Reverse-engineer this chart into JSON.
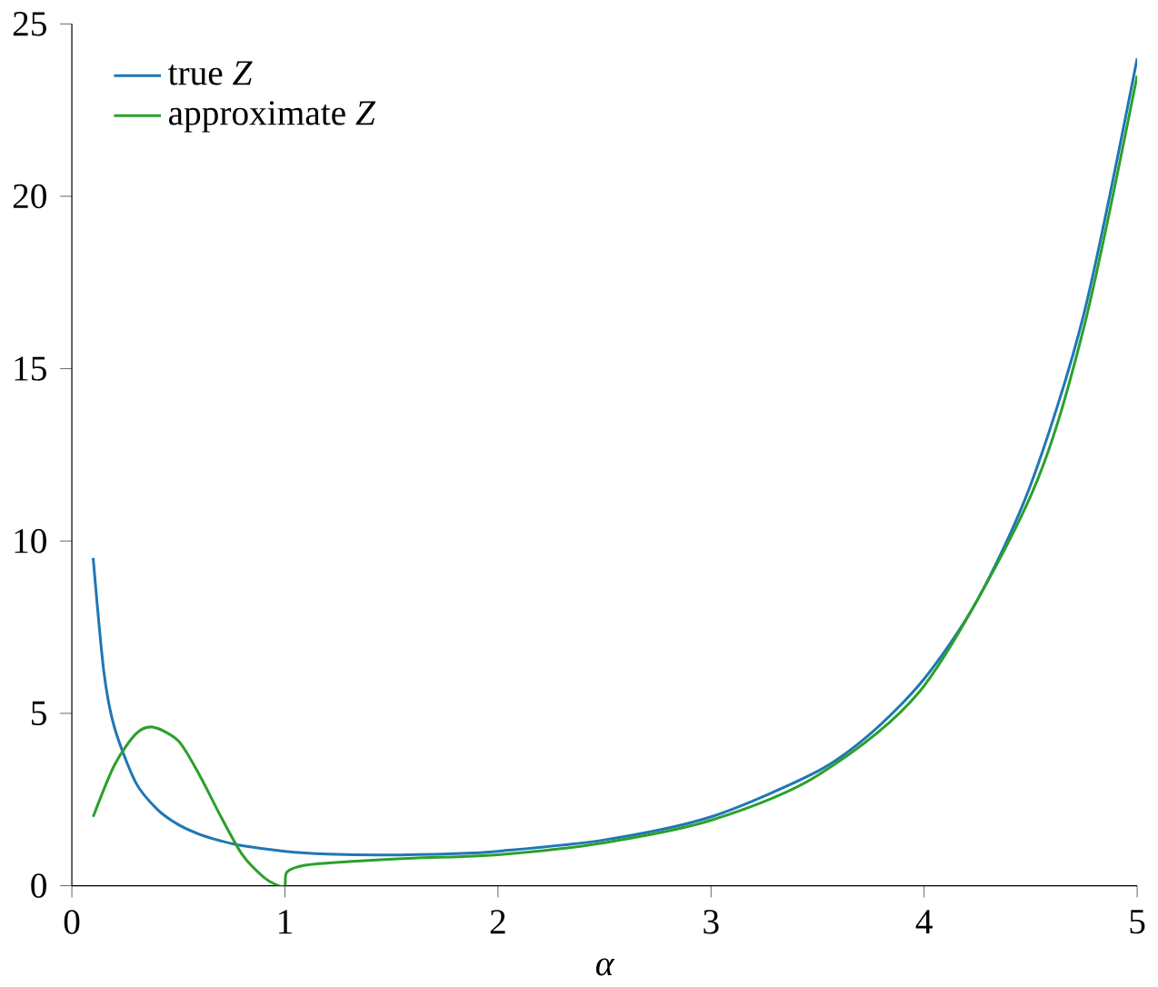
{
  "chart_data": {
    "type": "line",
    "xlabel": "α",
    "xlim": [
      0,
      5
    ],
    "ylim": [
      0,
      25
    ],
    "xticks": [
      0,
      1,
      2,
      3,
      4,
      5
    ],
    "yticks": [
      0,
      5,
      10,
      15,
      20,
      25
    ],
    "legend": "top left",
    "grid": false,
    "series": [
      {
        "name": "true *Z*",
        "color": "#1f77b4",
        "x": [
          0.1,
          0.15,
          0.2,
          0.3,
          0.4,
          0.5,
          0.6,
          0.7,
          0.8,
          1.0,
          1.2,
          1.46,
          1.8,
          2,
          2.5,
          3,
          3.5,
          3.75,
          4,
          4.25,
          4.5,
          4.75,
          5
        ],
        "values": [
          9.51,
          6.22,
          4.59,
          2.99,
          2.22,
          1.77,
          1.49,
          1.3,
          1.16,
          1.0,
          0.92,
          0.89,
          0.93,
          1.0,
          1.33,
          2.0,
          3.32,
          4.42,
          6.0,
          8.29,
          11.63,
          16.59,
          24.0
        ]
      },
      {
        "name": "approximate *Z*",
        "color": "#2ca02c",
        "x": [
          0.1,
          0.2,
          0.3,
          0.38,
          0.5,
          0.6,
          0.7,
          0.8,
          0.9,
          0.97,
          1.0,
          1.01,
          1.1,
          1.3,
          1.6,
          2,
          2.5,
          3,
          3.5,
          4,
          4.5,
          4.75,
          5
        ],
        "values": [
          2.0,
          3.5,
          4.4,
          4.6,
          4.2,
          3.2,
          2.0,
          0.9,
          0.25,
          0.0,
          0.0,
          0.4,
          0.6,
          0.7,
          0.8,
          0.9,
          1.25,
          1.9,
          3.2,
          5.8,
          11.3,
          16.2,
          23.5
        ]
      }
    ]
  }
}
